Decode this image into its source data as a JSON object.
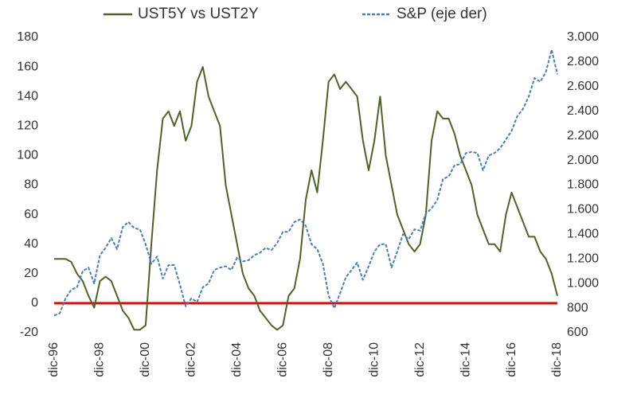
{
  "chart_data": {
    "type": "line",
    "categories": [
      "dic-96",
      null,
      null,
      null,
      null,
      null,
      null,
      null,
      "dic-98",
      null,
      null,
      null,
      null,
      null,
      null,
      null,
      "dic-00",
      null,
      null,
      null,
      null,
      null,
      null,
      null,
      "dic-02",
      null,
      null,
      null,
      null,
      null,
      null,
      null,
      "dic-04",
      null,
      null,
      null,
      null,
      null,
      null,
      null,
      "dic-06",
      null,
      null,
      null,
      null,
      null,
      null,
      null,
      "dic-08",
      null,
      null,
      null,
      null,
      null,
      null,
      null,
      "dic-10",
      null,
      null,
      null,
      null,
      null,
      null,
      null,
      "dic-12",
      null,
      null,
      null,
      null,
      null,
      null,
      null,
      "dic-14",
      null,
      null,
      null,
      null,
      null,
      null,
      null,
      "dic-16",
      null,
      null,
      null,
      null,
      null,
      null,
      null,
      "dic-18"
    ],
    "series": [
      {
        "name": "UST5Y vs UST2Y",
        "color": "#4f6228",
        "dashed": false,
        "values": [
          30,
          30,
          30,
          28,
          20,
          15,
          5,
          -3,
          15,
          18,
          15,
          5,
          -5,
          -10,
          -18,
          -18,
          -15,
          40,
          90,
          125,
          130,
          120,
          130,
          110,
          120,
          150,
          160,
          140,
          130,
          120,
          80,
          60,
          40,
          20,
          10,
          5,
          -5,
          -10,
          -15,
          -18,
          -15,
          5,
          10,
          30,
          70,
          90,
          75,
          110,
          150,
          155,
          145,
          150,
          145,
          140,
          110,
          90,
          110,
          140,
          100,
          80,
          60,
          50,
          40,
          35,
          40,
          60,
          110,
          130,
          125,
          125,
          115,
          100,
          90,
          80,
          60,
          50,
          40,
          40,
          35,
          60,
          75,
          65,
          55,
          45,
          45,
          35,
          30,
          20,
          5
        ]
      },
      {
        "name": "S&P (eje der)",
        "color": "#4a7ebb",
        "dashed": true,
        "axis": "y2",
        "values": [
          740,
          760,
          880,
          950,
          970,
          1100,
          1130,
          1000,
          1230,
          1290,
          1370,
          1280,
          1460,
          1500,
          1450,
          1440,
          1320,
          1160,
          1220,
          1040,
          1150,
          1150,
          990,
          815,
          880,
          850,
          970,
          1000,
          1110,
          1130,
          1140,
          1110,
          1210,
          1180,
          1190,
          1230,
          1250,
          1290,
          1270,
          1330,
          1420,
          1420,
          1500,
          1520,
          1470,
          1320,
          1280,
          1160,
          900,
          800,
          920,
          1050,
          1110,
          1170,
          1030,
          1140,
          1260,
          1320,
          1320,
          1130,
          1260,
          1400,
          1360,
          1440,
          1430,
          1570,
          1610,
          1680,
          1850,
          1870,
          1960,
          1970,
          2060,
          2070,
          2060,
          1920,
          2040,
          2060,
          2100,
          2170,
          2240,
          2360,
          2420,
          2520,
          2670,
          2640,
          2720,
          2900,
          2700
        ]
      }
    ],
    "ylim": [
      -20,
      180
    ],
    "yticks": [
      -20,
      0,
      20,
      40,
      60,
      80,
      100,
      120,
      140,
      160,
      180
    ],
    "y2lim": [
      600,
      3000
    ],
    "y2ticks": [
      600,
      800,
      {
        "value": 1000,
        "label": "1.000"
      },
      {
        "value": 1200,
        "label": "1.200"
      },
      {
        "value": 1400,
        "label": "1.400"
      },
      {
        "value": 1600,
        "label": "1.600"
      },
      {
        "value": 1800,
        "label": "1.800"
      },
      {
        "value": 2000,
        "label": "2.000"
      },
      {
        "value": 2200,
        "label": "2.200"
      },
      {
        "value": 2400,
        "label": "2.400"
      },
      {
        "value": 2600,
        "label": "2.600"
      },
      {
        "value": 2800,
        "label": "2.800"
      },
      {
        "value": 3000,
        "label": "3.000"
      }
    ],
    "zero_line_color": "#ff0000",
    "legend": "top"
  }
}
